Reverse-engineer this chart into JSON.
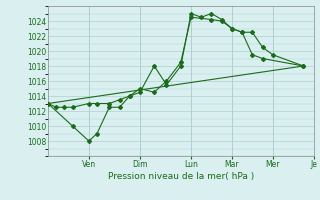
{
  "xlabel": "Pression niveau de la mer( hPa )",
  "bg_color": "#d9eff0",
  "plot_bg_color": "#d9eff0",
  "grid_color": "#b0d0d0",
  "line_color": "#1a6b1a",
  "spine_color": "#888888",
  "ylim": [
    1006,
    1026
  ],
  "xlim": [
    0,
    13
  ],
  "yticks": [
    1008,
    1010,
    1012,
    1014,
    1016,
    1018,
    1020,
    1022,
    1024
  ],
  "day_labels": [
    "Ven",
    "Dim",
    "Lun",
    "Mar",
    "Mer",
    "Je"
  ],
  "day_positions": [
    2.0,
    4.5,
    7.0,
    9.0,
    11.0,
    13.0
  ],
  "vline_positions": [
    2.0,
    4.5,
    7.0,
    9.0,
    11.0
  ],
  "series1_x": [
    0.0,
    0.4,
    0.8,
    1.2,
    2.0,
    2.4,
    3.0,
    3.5,
    4.0,
    4.5,
    5.2,
    5.8,
    6.5,
    7.0,
    7.5,
    8.0,
    8.5,
    9.0,
    9.5,
    10.0,
    10.5,
    11.0,
    12.5
  ],
  "series1_y": [
    1013,
    1012.5,
    1012.5,
    1012.5,
    1013,
    1013,
    1013,
    1013.5,
    1014,
    1014.5,
    1018,
    1015.5,
    1018,
    1025,
    1024.5,
    1025,
    1024.2,
    1023,
    1022.5,
    1022.5,
    1020.5,
    1019.5,
    1018
  ],
  "series2_x": [
    0.0,
    1.2,
    2.0,
    2.4,
    3.0,
    3.5,
    4.0,
    4.5,
    5.2,
    5.8,
    6.5,
    7.0,
    8.0,
    8.5,
    9.0,
    9.5,
    10.0,
    10.5,
    12.5
  ],
  "series2_y": [
    1013,
    1010,
    1008,
    1009,
    1012.5,
    1012.5,
    1014,
    1015,
    1014.5,
    1016,
    1018.5,
    1024.5,
    1024.2,
    1024,
    1023,
    1022.5,
    1019.5,
    1019,
    1018
  ],
  "series3_x": [
    0.0,
    12.5
  ],
  "series3_y": [
    1013,
    1018
  ]
}
